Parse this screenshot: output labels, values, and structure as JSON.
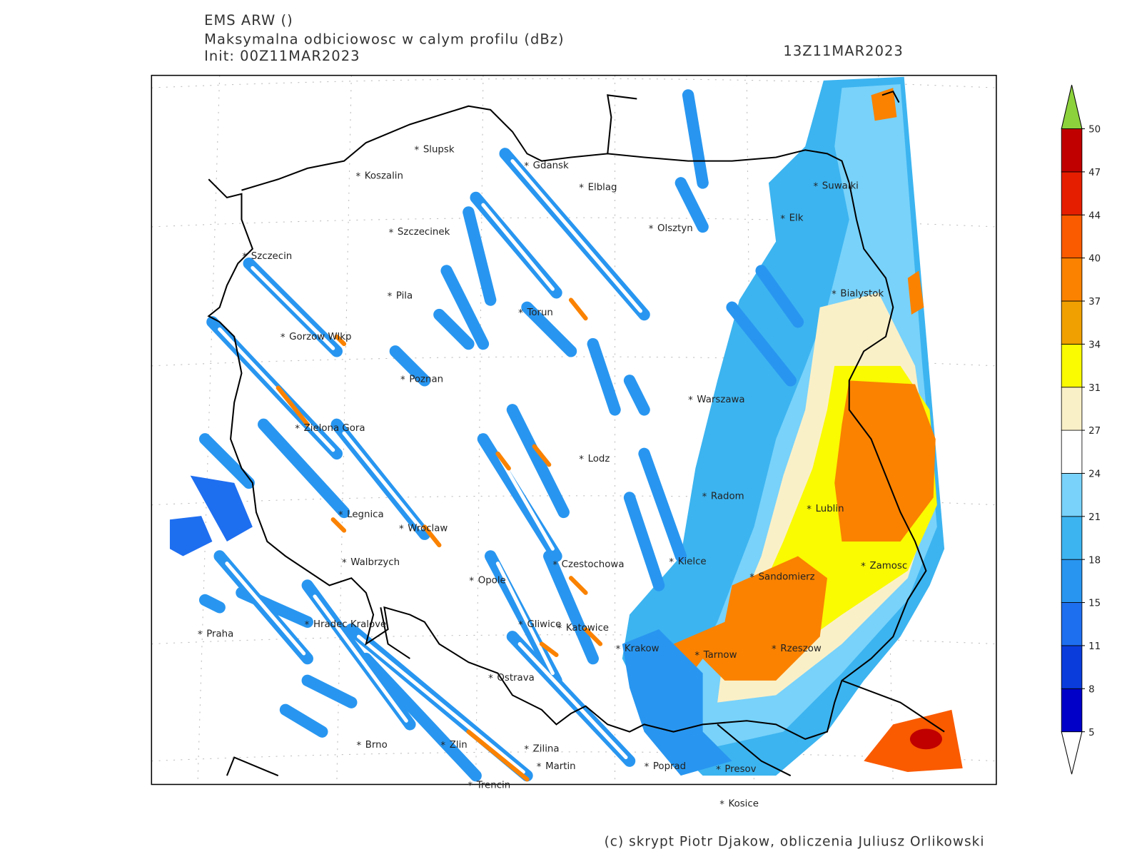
{
  "header": {
    "model": "EMS ARW ()",
    "title": "Maksymalna odbiciowosc w calym profilu (dBz)",
    "init": "Init: 00Z11MAR2023",
    "valid": "13Z11MAR2023"
  },
  "cities": [
    "Slupsk",
    "Koszalin",
    "Gdansk",
    "Elblag",
    "Suwalki",
    "Elk",
    "Olsztyn",
    "Szczecinek",
    "Szczecin",
    "Pila",
    "Bialystok",
    "Torun",
    "Gorzow Wlkp",
    "Poznan",
    "Warszawa",
    "Zielona Gora",
    "Lodz",
    "Radom",
    "Lublin",
    "Legnica",
    "Wroclaw",
    "Walbrzych",
    "Czestochowa",
    "Kielce",
    "Zamosc",
    "Opole",
    "Sandomierz",
    "Praha",
    "Hradec Kralove",
    "Gliwice",
    "Katowice",
    "Krakow",
    "Tarnow",
    "Rzeszow",
    "Ostrava",
    "Brno",
    "Zlin",
    "Zilina",
    "Martin",
    "Poprad",
    "Presov",
    "Trencin",
    "Kosice"
  ],
  "colorbar": {
    "levels": [
      5,
      8,
      11,
      15,
      18,
      21,
      24,
      27,
      31,
      34,
      37,
      40,
      44,
      47,
      50
    ],
    "colors": [
      "#0000c8",
      "#0a3cdc",
      "#1e6ef0",
      "#2896f0",
      "#3cb4f0",
      "#78d2fa",
      "#ffffff",
      "#faf0c8",
      "#fafa00",
      "#f0a000",
      "#fa8200",
      "#fa5a00",
      "#e61e00",
      "#c00000"
    ],
    "over_color": "#8cd23c",
    "under_color": "#ffffff"
  },
  "footer": "(c) skrypt Piotr Djakow, obliczenia Juliusz Orlikowski"
}
